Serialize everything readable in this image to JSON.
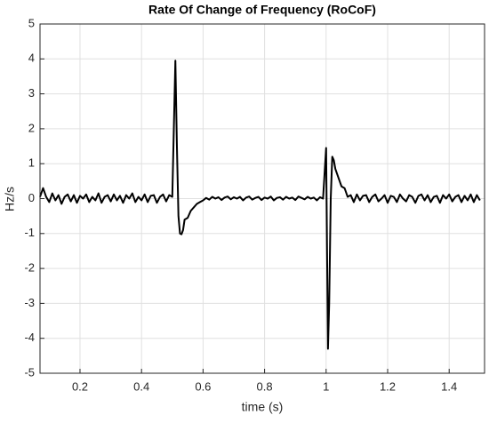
{
  "chart_data": {
    "type": "line",
    "title": "Rate Of Change of Frequency (RoCoF)",
    "x_label": "time (s)",
    "y_label": "Hz/s",
    "color": "#000000",
    "grid": true,
    "xlim": [
      0.07,
      1.515
    ],
    "ylim": [
      -5,
      5
    ],
    "xticks": [
      0.2,
      0.4,
      0.6,
      0.8,
      1,
      1.2,
      1.4
    ],
    "yticks": [
      -5,
      -4,
      -3,
      -2,
      -1,
      0,
      1,
      2,
      3,
      4,
      5
    ],
    "x": [
      0.07,
      0.08,
      0.09,
      0.1,
      0.11,
      0.12,
      0.13,
      0.14,
      0.15,
      0.16,
      0.17,
      0.18,
      0.19,
      0.2,
      0.21,
      0.22,
      0.23,
      0.24,
      0.25,
      0.26,
      0.27,
      0.28,
      0.29,
      0.3,
      0.31,
      0.32,
      0.33,
      0.34,
      0.35,
      0.36,
      0.37,
      0.38,
      0.39,
      0.4,
      0.41,
      0.42,
      0.43,
      0.44,
      0.45,
      0.46,
      0.47,
      0.48,
      0.49,
      0.5,
      0.505,
      0.51,
      0.515,
      0.52,
      0.525,
      0.53,
      0.535,
      0.54,
      0.55,
      0.56,
      0.57,
      0.58,
      0.59,
      0.6,
      0.61,
      0.62,
      0.63,
      0.64,
      0.65,
      0.66,
      0.67,
      0.68,
      0.69,
      0.7,
      0.71,
      0.72,
      0.73,
      0.74,
      0.75,
      0.76,
      0.77,
      0.78,
      0.79,
      0.8,
      0.81,
      0.82,
      0.83,
      0.84,
      0.85,
      0.86,
      0.87,
      0.88,
      0.89,
      0.9,
      0.91,
      0.92,
      0.93,
      0.94,
      0.95,
      0.96,
      0.97,
      0.98,
      0.99,
      1.0,
      1.003,
      1.006,
      1.01,
      1.015,
      1.02,
      1.025,
      1.03,
      1.04,
      1.05,
      1.06,
      1.07,
      1.08,
      1.09,
      1.1,
      1.11,
      1.12,
      1.13,
      1.14,
      1.15,
      1.16,
      1.17,
      1.18,
      1.19,
      1.2,
      1.21,
      1.22,
      1.23,
      1.24,
      1.25,
      1.26,
      1.27,
      1.28,
      1.29,
      1.3,
      1.31,
      1.32,
      1.33,
      1.34,
      1.35,
      1.36,
      1.37,
      1.38,
      1.39,
      1.4,
      1.41,
      1.42,
      1.43,
      1.44,
      1.45,
      1.46,
      1.47,
      1.48,
      1.49,
      1.5
    ],
    "values": [
      0.05,
      0.3,
      0.05,
      -0.1,
      0.15,
      -0.05,
      0.1,
      -0.15,
      0.05,
      0.12,
      -0.08,
      0.1,
      -0.12,
      0.08,
      0.0,
      0.12,
      -0.1,
      0.05,
      -0.05,
      0.15,
      -0.12,
      0.05,
      0.1,
      -0.08,
      0.12,
      -0.05,
      0.08,
      -0.12,
      0.1,
      0.0,
      0.15,
      -0.1,
      0.05,
      -0.05,
      0.12,
      -0.1,
      0.08,
      0.1,
      -0.12,
      0.05,
      0.12,
      -0.08,
      0.1,
      0.05,
      2.0,
      3.95,
      1.5,
      -0.5,
      -1.0,
      -1.02,
      -0.9,
      -0.6,
      -0.55,
      -0.35,
      -0.25,
      -0.15,
      -0.1,
      -0.05,
      0.02,
      -0.03,
      0.05,
      0.0,
      0.04,
      -0.04,
      0.03,
      0.06,
      -0.02,
      0.04,
      0.0,
      0.05,
      -0.05,
      0.03,
      0.06,
      -0.03,
      0.02,
      0.05,
      -0.04,
      0.03,
      0.0,
      0.06,
      -0.05,
      0.02,
      0.04,
      -0.03,
      0.05,
      0.0,
      0.03,
      -0.04,
      0.06,
      0.02,
      -0.02,
      0.05,
      0.0,
      0.03,
      -0.05,
      0.04,
      0.0,
      1.45,
      -1.5,
      -4.3,
      -3.0,
      0.0,
      1.2,
      1.1,
      0.85,
      0.6,
      0.35,
      0.3,
      0.05,
      0.1,
      -0.1,
      0.12,
      -0.05,
      0.08,
      0.1,
      -0.1,
      0.05,
      0.12,
      -0.08,
      0.0,
      0.1,
      -0.12,
      0.08,
      0.05,
      -0.1,
      0.12,
      0.0,
      -0.08,
      0.1,
      0.05,
      -0.12,
      0.08,
      0.12,
      -0.05,
      0.1,
      -0.1,
      0.05,
      0.08,
      -0.12,
      0.1,
      0.0,
      0.12,
      -0.08,
      0.05,
      0.1,
      -0.1,
      0.08,
      -0.05,
      0.12,
      -0.1,
      0.1,
      -0.05
    ]
  }
}
